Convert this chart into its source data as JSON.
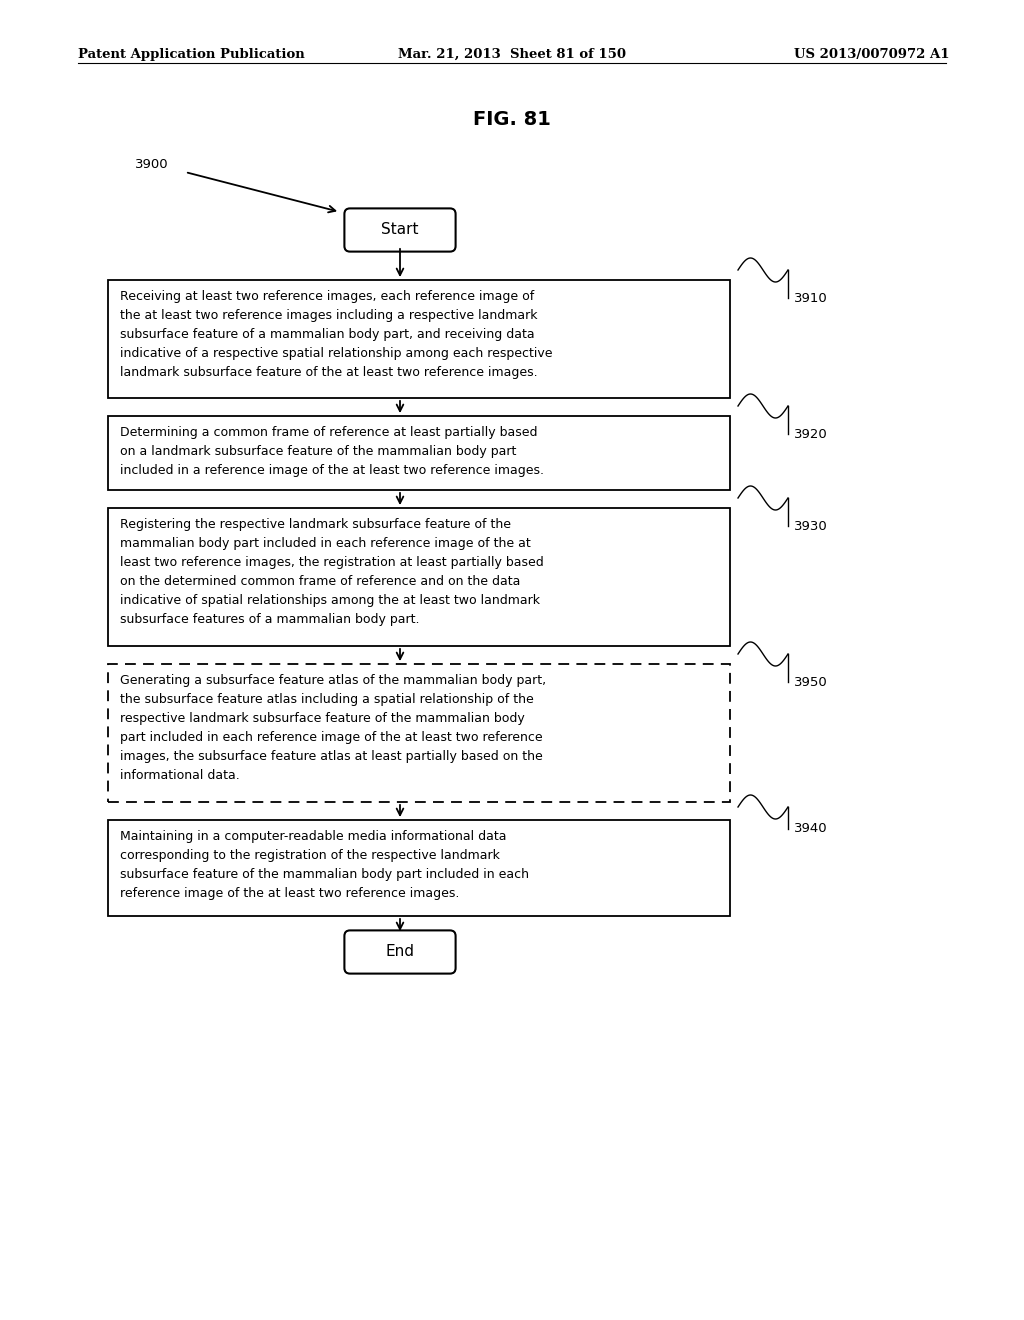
{
  "title": "FIG. 81",
  "header_left": "Patent Application Publication",
  "header_center": "Mar. 21, 2013  Sheet 81 of 150",
  "header_right": "US 2013/0070972 A1",
  "fig_label": "3900",
  "background_color": "#ffffff",
  "text_color": "#000000",
  "font_size_header": 9.5,
  "font_size_title": 14,
  "font_size_label": 9.5,
  "font_size_body": 9.0,
  "box_texts": [
    "Receiving at least two reference images, each reference image of\nthe at least two reference images including a respective landmark\nsubsurface feature of a mammalian body part, and receiving data\nindicative of a respective spatial relationship among each respective\nlandmark subsurface feature of the at least two reference images.",
    "Determining a common frame of reference at least partially based\non a landmark subsurface feature of the mammalian body part\nincluded in a reference image of the at least two reference images.",
    "Registering the respective landmark subsurface feature of the\nmammalian body part included in each reference image of the at\nleast two reference images, the registration at least partially based\non the determined common frame of reference and on the data\nindicative of spatial relationships among the at least two landmark\nsubsurface features of a mammalian body part.",
    "Generating a subsurface feature atlas of the mammalian body part,\nthe subsurface feature atlas including a spatial relationship of the\nrespective landmark subsurface feature of the mammalian body\npart included in each reference image of the at least two reference\nimages, the subsurface feature atlas at least partially based on the\ninformational data.",
    "Maintaining in a computer-readable media informational data\ncorresponding to the registration of the respective landmark\nsubsurface feature of the mammalian body part included in each\nreference image of the at least two reference images."
  ],
  "box_labels": [
    "3910",
    "3920",
    "3930",
    "3950",
    "3940"
  ],
  "box_dashed": [
    false,
    false,
    false,
    true,
    false
  ]
}
